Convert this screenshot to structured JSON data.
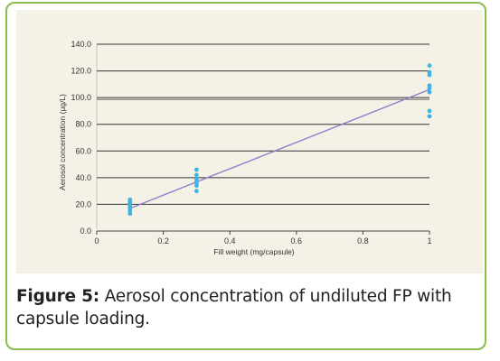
{
  "caption": {
    "label": "Figure 5:",
    "text": " Aerosol concentration of undiluted FP with capsule loading."
  },
  "colors": {
    "frame_border": "#8dbb4a",
    "figure_background": "#f4f2e6",
    "gridline": "#333333",
    "points": "#3fb3e6",
    "fit_line": "#8a80cc"
  },
  "chart_data": {
    "type": "scatter",
    "xlabel": "Fill weight (mg/capsule)",
    "ylabel": "Aerosol concentration (μg/L)",
    "xlim": [
      0,
      1
    ],
    "ylim": [
      0,
      140
    ],
    "x_ticks": [
      "0",
      "0.2",
      "0.4",
      "0.6",
      "0.8",
      "1"
    ],
    "y_ticks": [
      "0.0",
      "20.0",
      "40.0",
      "60.0",
      "80.0",
      "100.0",
      "120.0",
      "140.0"
    ],
    "grid": "horizontal",
    "series": [
      {
        "x": [
          0.1,
          0.1,
          0.1,
          0.1,
          0.1,
          0.1,
          0.1,
          0.1,
          0.3,
          0.3,
          0.3,
          0.3,
          0.3,
          0.3,
          0.3,
          1,
          1,
          1,
          1,
          1,
          1,
          1,
          1
        ],
        "y": [
          13,
          15,
          17,
          18,
          19.5,
          21,
          22,
          23.5,
          30,
          34,
          36,
          37,
          39,
          42,
          46,
          86,
          90,
          104,
          107,
          109,
          117,
          119,
          124
        ]
      }
    ],
    "trendline": {
      "x": [
        0.1,
        1
      ],
      "y": [
        17,
        106
      ]
    }
  }
}
